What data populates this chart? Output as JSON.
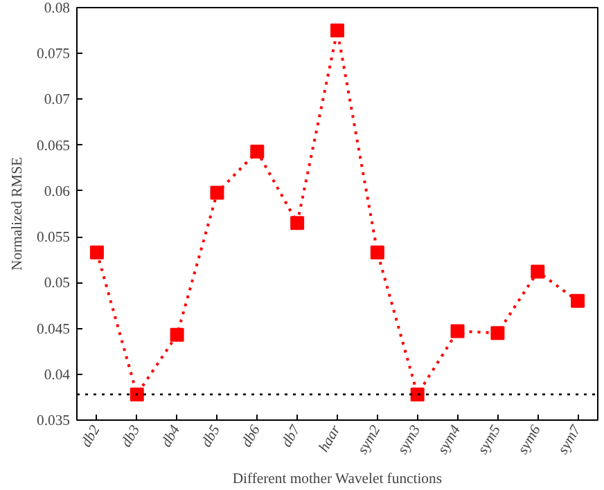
{
  "chart_data": {
    "type": "line",
    "xlabel": "Different mother Wavelet functions",
    "ylabel": "Normalized RMSE",
    "categories": [
      "db2",
      "db3",
      "db4",
      "db5",
      "db6",
      "db7",
      "haar",
      "sym2",
      "sym3",
      "sym4",
      "sym5",
      "sym6",
      "sym7"
    ],
    "series": [
      {
        "color": "#ff0000",
        "values": [
          0.0533,
          0.0378,
          0.0443,
          0.0598,
          0.0643,
          0.0565,
          0.0775,
          0.0533,
          0.0378,
          0.0447,
          0.0445,
          0.0512,
          0.048
        ]
      }
    ],
    "ylim": [
      0.035,
      0.08
    ],
    "yticks": [
      0.035,
      0.04,
      0.045,
      0.05,
      0.055,
      0.06,
      0.065,
      0.07,
      0.075,
      0.08
    ],
    "ref_lines": [
      {
        "axis": "y",
        "value": 0.0378,
        "color": "#000000",
        "line_style": "dotted"
      }
    ],
    "marker": "square",
    "line_style": "dotted"
  }
}
